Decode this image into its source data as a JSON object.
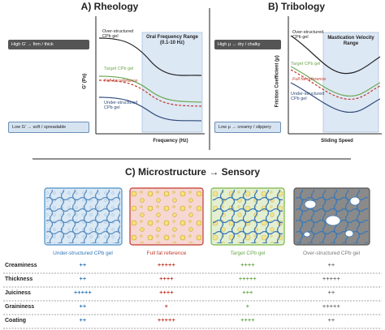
{
  "panel_a": {
    "title": "A) Rheology",
    "y_label": "G' (Pa)",
    "x_label": "Frequency (Hz)",
    "range_label": "Oral Frequency Range (0.1-10 Hz)",
    "curve_labels": [
      "Over-structured CPb gel",
      "Target CPb gel",
      "Full fat reference",
      "Under-structured CPb gel"
    ],
    "high_note": "High G' → firm / thick",
    "low_note": "Low G' → soft / spreadable"
  },
  "panel_b": {
    "title": "B) Tribology",
    "y_label": "Friction Coefficient (μ)",
    "x_label": "Sliding Speed",
    "range_label": "Mastication Velocity Range",
    "curve_labels": [
      "Over-structured CPb gel",
      "Target CPb gel",
      "Full fat reference",
      "Under-structured CPb gel"
    ],
    "high_note": "High μ → dry / chalky",
    "low_note": "Low μ → creamy / slippery"
  },
  "panel_c": {
    "title": "C) Microstructure → Sensory",
    "columns": [
      "Under-structured CPb gel",
      "Full fat reference",
      "Target CPb gel",
      "Over-structured CPb gel"
    ],
    "rows": [
      {
        "attribute": "Creaminess",
        "ratings": [
          "++",
          "+++++",
          "++++",
          "++"
        ]
      },
      {
        "attribute": "Thickness",
        "ratings": [
          "++",
          "++++",
          "+++++",
          "+++++"
        ]
      },
      {
        "attribute": "Juiciness",
        "ratings": [
          "+++++",
          "++++",
          "+++",
          "++"
        ]
      },
      {
        "attribute": "Graininess",
        "ratings": [
          "++",
          "+",
          "+",
          "+++++"
        ]
      },
      {
        "attribute": "Coating",
        "ratings": [
          "++",
          "+++++",
          "++++",
          "++"
        ]
      }
    ]
  }
}
